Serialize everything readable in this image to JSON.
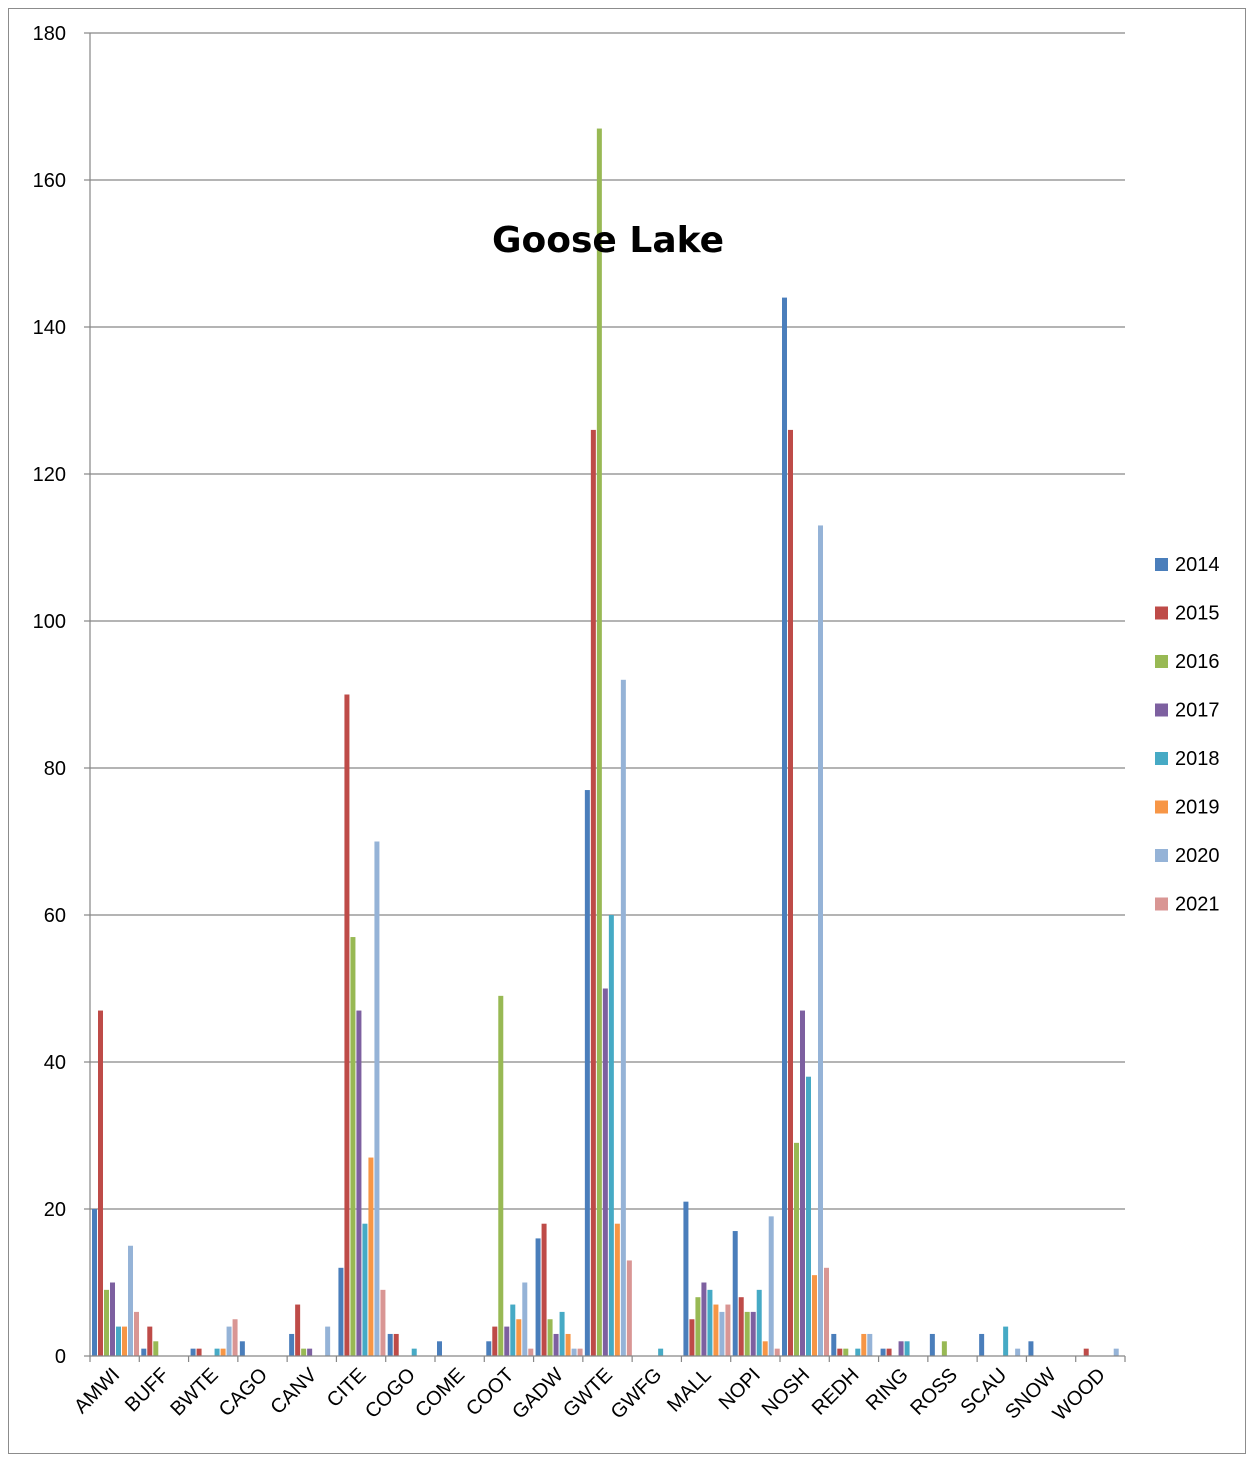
{
  "chart_data": {
    "type": "bar",
    "title": "Goose Lake",
    "xlabel": "",
    "ylabel": "",
    "ylim": [
      0,
      180
    ],
    "yticks": [
      0,
      20,
      40,
      60,
      80,
      100,
      120,
      140,
      160,
      180
    ],
    "grid": true,
    "legend_position": "right",
    "categories": [
      "AMWI",
      "BUFF",
      "BWTE",
      "CAGO",
      "CANV",
      "CITE",
      "COGO",
      "COME",
      "COOT",
      "GADW",
      "GWTE",
      "GWFG",
      "MALL",
      "NOPI",
      "NOSH",
      "REDH",
      "RING",
      "ROSS",
      "SCAU",
      "SNOW",
      "WOOD"
    ],
    "series": [
      {
        "name": "2014",
        "color": "#4a7ebb",
        "values": [
          20,
          1,
          1,
          2,
          3,
          12,
          3,
          2,
          2,
          16,
          77,
          0,
          21,
          17,
          144,
          3,
          1,
          3,
          3,
          2,
          0
        ]
      },
      {
        "name": "2015",
        "color": "#be4b48",
        "values": [
          47,
          4,
          1,
          0,
          7,
          90,
          3,
          0,
          4,
          18,
          126,
          0,
          5,
          8,
          126,
          1,
          1,
          0,
          0,
          0,
          1
        ]
      },
      {
        "name": "2016",
        "color": "#98b954",
        "values": [
          9,
          2,
          0,
          0,
          1,
          57,
          0,
          0,
          49,
          5,
          167,
          0,
          8,
          6,
          29,
          1,
          0,
          2,
          0,
          0,
          0
        ]
      },
      {
        "name": "2017",
        "color": "#7d60a0",
        "values": [
          10,
          0,
          0,
          0,
          1,
          47,
          0,
          0,
          4,
          3,
          50,
          0,
          10,
          6,
          47,
          0,
          2,
          0,
          0,
          0,
          0
        ]
      },
      {
        "name": "2018",
        "color": "#46aac5",
        "values": [
          4,
          0,
          1,
          0,
          0,
          18,
          1,
          0,
          7,
          6,
          60,
          1,
          9,
          9,
          38,
          1,
          2,
          0,
          4,
          0,
          0
        ]
      },
      {
        "name": "2019",
        "color": "#f79646",
        "values": [
          4,
          0,
          1,
          0,
          0,
          27,
          0,
          0,
          5,
          3,
          18,
          0,
          7,
          2,
          11,
          3,
          0,
          0,
          0,
          0,
          0
        ]
      },
      {
        "name": "2020",
        "color": "#95b3d7",
        "values": [
          15,
          0,
          4,
          0,
          4,
          70,
          0,
          0,
          10,
          1,
          92,
          0,
          6,
          19,
          113,
          3,
          0,
          0,
          1,
          0,
          1
        ]
      },
      {
        "name": "2021",
        "color": "#d99694",
        "values": [
          6,
          0,
          5,
          0,
          0,
          9,
          0,
          0,
          1,
          1,
          13,
          0,
          7,
          1,
          12,
          0,
          0,
          0,
          0,
          0,
          0
        ]
      }
    ]
  }
}
